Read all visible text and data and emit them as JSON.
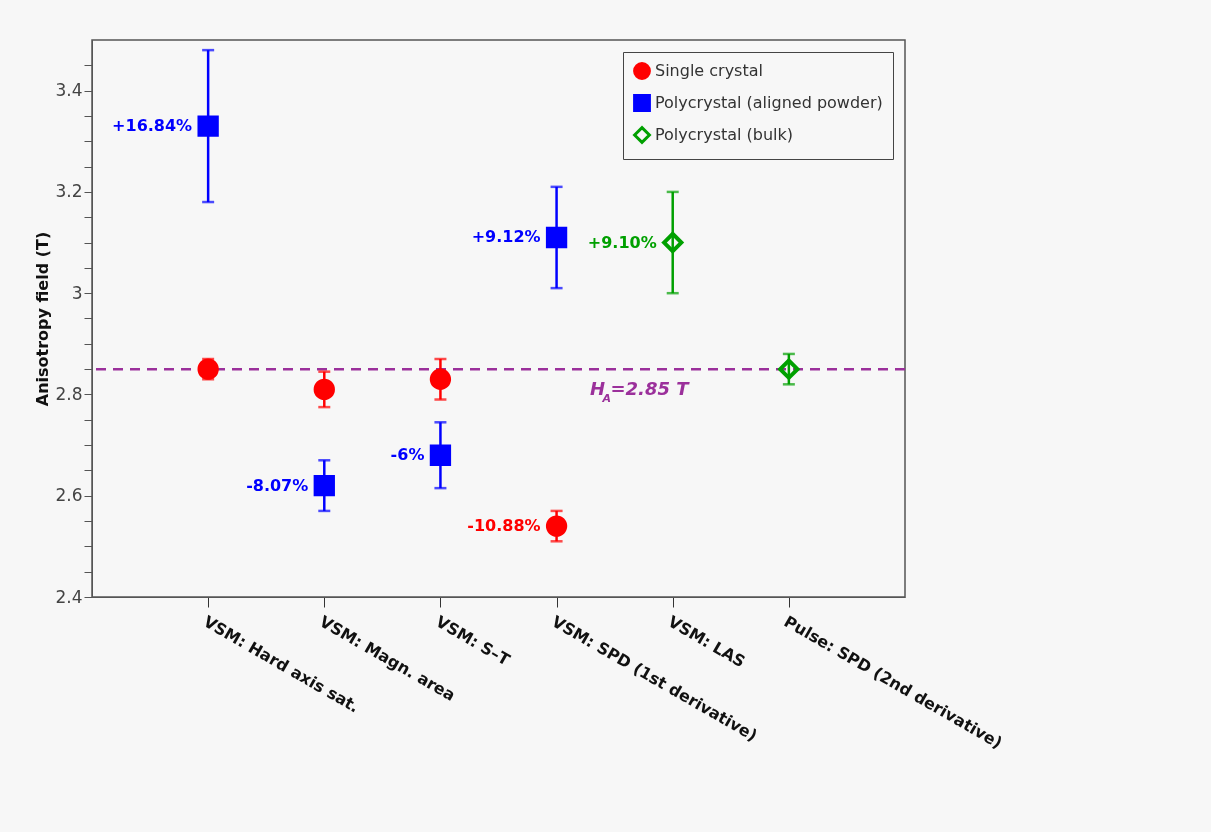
{
  "chart_data": {
    "type": "scatter",
    "ylabel": "Anisotropy field (T)",
    "categories": [
      "VSM: Hard axis sat.",
      "VSM: Magn. area",
      "VSM: S–T",
      "VSM: SPD (1st derivative)",
      "VSM: LAS",
      "Pulse: SPD (2nd derivative)"
    ],
    "series": [
      {
        "name": "Single crystal",
        "color": "#ff0000",
        "marker": "circle",
        "values": [
          2.85,
          2.81,
          2.83,
          2.54,
          null,
          null
        ],
        "errors": [
          0.02,
          0.035,
          0.04,
          0.03,
          null,
          null
        ]
      },
      {
        "name": "Polycrystal (aligned powder)",
        "color": "#0000ff",
        "marker": "square",
        "values": [
          3.33,
          2.62,
          2.68,
          3.11,
          null,
          null
        ],
        "errors": [
          [
            3.18,
            3.48
          ],
          0.05,
          0.065,
          0.1,
          null,
          null
        ]
      },
      {
        "name": "Polycrystal (bulk)",
        "color": "#00a000",
        "marker": "diamond",
        "values": [
          null,
          null,
          null,
          null,
          3.1,
          2.85
        ],
        "errors": [
          null,
          null,
          null,
          null,
          0.1,
          0.03
        ]
      }
    ],
    "ylim": [
      2.4,
      3.5
    ],
    "yticks": [
      2.4,
      {
        "value": 2.45,
        "label": null
      },
      {
        "value": 2.5,
        "label": null
      },
      {
        "value": 2.55,
        "label": null
      },
      2.6,
      {
        "value": 2.65,
        "label": null
      },
      {
        "value": 2.7,
        "label": null
      },
      {
        "value": 2.75,
        "label": null
      },
      2.8,
      {
        "value": 2.85,
        "label": null
      },
      {
        "value": 2.9,
        "label": null
      },
      {
        "value": 2.95,
        "label": null
      },
      3,
      {
        "value": 3.05,
        "label": null
      },
      {
        "value": 3.1,
        "label": null
      },
      {
        "value": 3.15,
        "label": null
      },
      3.2,
      {
        "value": 3.25,
        "label": null
      },
      {
        "value": 3.3,
        "label": null
      },
      {
        "value": 3.35,
        "label": null
      },
      3.4,
      {
        "value": 3.45,
        "label": null
      }
    ],
    "ref_lines": [
      {
        "axis": "y",
        "value": 2.85,
        "label": "H$_{A}$=2.85 T",
        "color": "#9b309b",
        "line_style": "dashed"
      }
    ],
    "annotations": [
      {
        "text": "+16.84%",
        "x": "VSM: Hard axis sat.",
        "y": 3.33
      },
      {
        "text": "-8.07%",
        "x": "VSM: Magn. area",
        "y": 2.62
      },
      {
        "text": "-6%",
        "x": "VSM: S–T",
        "y": 2.68
      },
      {
        "text": "-10.88%",
        "x": "VSM: SPD (1st derivative)",
        "y": 2.54
      },
      {
        "text": "+9.12%",
        "x": "VSM: SPD (1st derivative)",
        "y": 3.11
      },
      {
        "text": "+9.10%",
        "x": "VSM: LAS",
        "y": 3.1
      }
    ],
    "legend": "top right",
    "grid": false
  }
}
